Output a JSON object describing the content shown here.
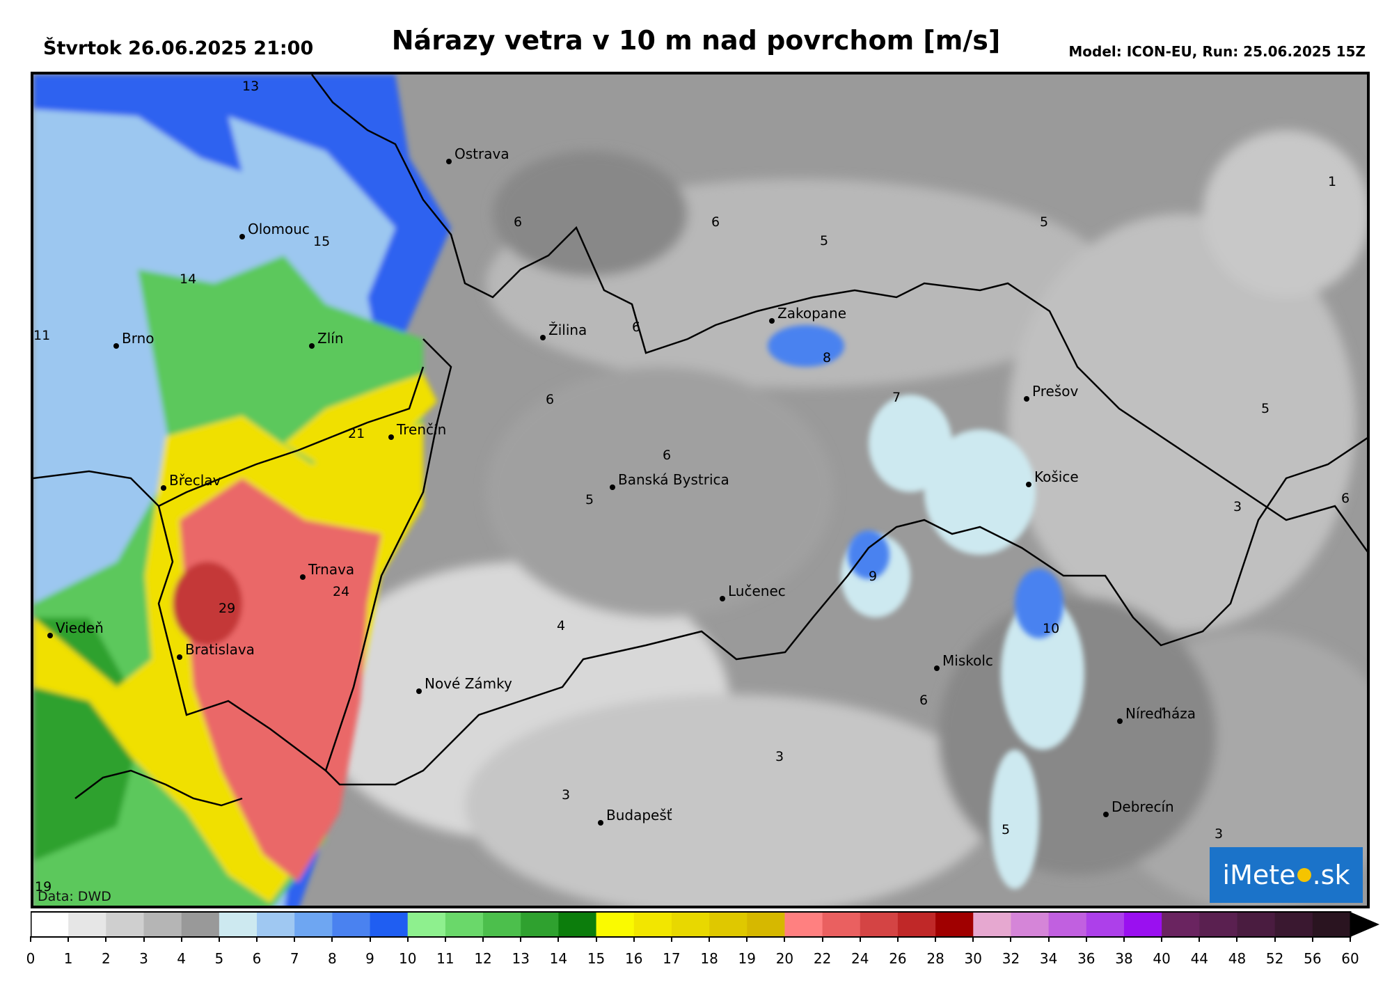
{
  "header": {
    "date": "Štvrtok 26.06.2025 21:00",
    "title": "Nárazy vetra v 10 m nad povrchom [m/s]",
    "model": "Model: ICON-EU, Run: 25.06.2025 15Z"
  },
  "cities": [
    "Ostrava",
    "Olomouc",
    "Brno",
    "Zlín",
    "Žilina",
    "Zakopane",
    "Prešov",
    "Trenčín",
    "Břeclav",
    "Banská Bystrica",
    "Košice",
    "Trnava",
    "Viedeň",
    "Bratislava",
    "Lučenec",
    "Nové Zámky",
    "Miskolc",
    "Níreďháza",
    "Debrecín",
    "Budapešť"
  ],
  "contour_labels": [
    "13",
    "1",
    "6",
    "6",
    "5",
    "5",
    "15",
    "14",
    "11",
    "6",
    "8",
    "7",
    "5",
    "6",
    "21",
    "6",
    "6",
    "5",
    "3",
    "9",
    "24",
    "29",
    "4",
    "10",
    "6",
    "3",
    "3",
    "5",
    "3",
    "19"
  ],
  "credit": "Data: DWD",
  "logo": {
    "left": "iMete",
    "right": ".sk"
  },
  "colorbar": {
    "colors": [
      "#ffffff",
      "#e6e6e6",
      "#cfcfcf",
      "#b5b5b5",
      "#999999",
      "#cde9f0",
      "#9fc8f2",
      "#6ea6f2",
      "#4a82f0",
      "#1f5ef2",
      "#8ef08e",
      "#6ad86a",
      "#4cbf4c",
      "#2fa12f",
      "#0c7d0c",
      "#fafa00",
      "#f2e600",
      "#e8d800",
      "#dfc800",
      "#d6b800",
      "#ff8080",
      "#ea6060",
      "#d44444",
      "#c02828",
      "#a00000",
      "#e6a8d0",
      "#d585d8",
      "#c160e0",
      "#ad40ea",
      "#9a10f0",
      "#6a2460",
      "#5a2050",
      "#4a1c40",
      "#3a1830",
      "#2a1420"
    ],
    "ticks": [
      "0",
      "1",
      "2",
      "3",
      "4",
      "5",
      "6",
      "7",
      "8",
      "9",
      "10",
      "11",
      "12",
      "13",
      "14",
      "15",
      "16",
      "17",
      "18",
      "19",
      "20",
      "22",
      "24",
      "26",
      "28",
      "30",
      "32",
      "34",
      "36",
      "38",
      "40",
      "44",
      "48",
      "52",
      "56",
      "60"
    ]
  }
}
